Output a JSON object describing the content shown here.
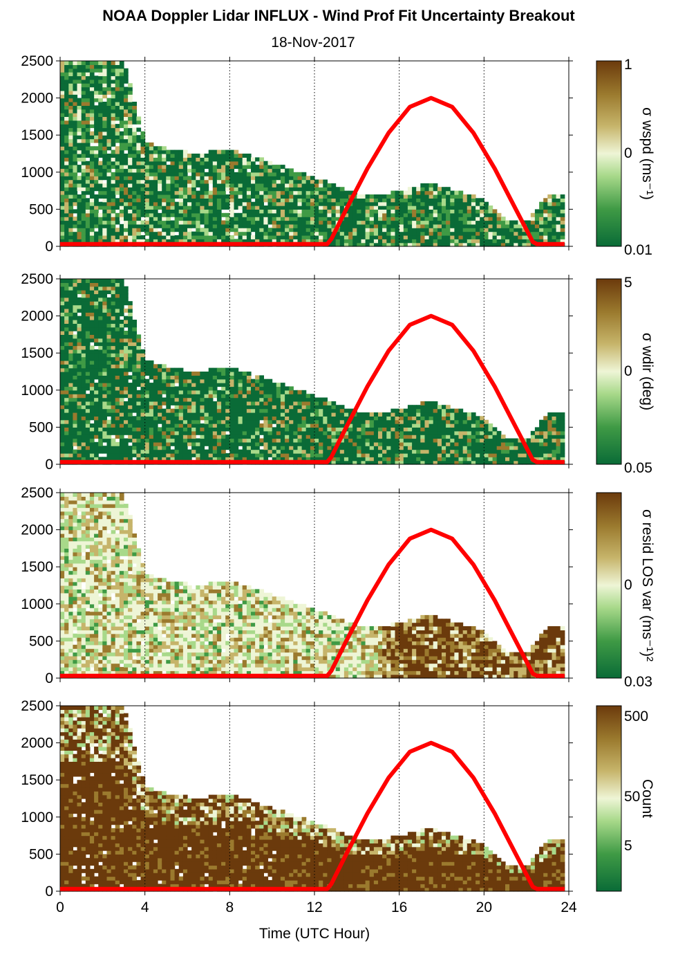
{
  "figure": {
    "title": "NOAA Doppler Lidar INFLUX - Wind Prof Fit Uncertainty Breakout",
    "date": "18-Nov-2017",
    "xlabel": "Time (UTC Hour)"
  },
  "colors": {
    "deep_green": "#0a6b37",
    "green": "#3f9a45",
    "light_green": "#a8d98a",
    "pale": "#eef5d6",
    "tan": "#c6b46a",
    "olive_brown": "#9b7a2e",
    "dark_brown": "#6b3a0c",
    "sun_curve": "#ff0000"
  },
  "chart_data": [
    {
      "type": "heatmap",
      "variable": "wspd",
      "colorbar": {
        "label": "σ wspd (ms⁻¹)",
        "ticks": [
          "1",
          "0",
          "0.01"
        ],
        "scale": "log",
        "range": [
          0.01,
          1
        ]
      },
      "x_ticks": [
        0,
        4,
        8,
        12,
        16,
        20,
        24
      ],
      "y_ticks": [
        0,
        500,
        1000,
        1500,
        2000,
        2500
      ],
      "xlim": [
        0,
        24
      ],
      "ylim": [
        0,
        2500
      ],
      "grid": "dotted vertical lines at 4-hour intervals"
    },
    {
      "type": "heatmap",
      "variable": "wdir",
      "colorbar": {
        "label": "σ wdir (deg)",
        "ticks": [
          "5",
          "0",
          "0.05"
        ],
        "scale": "log",
        "range": [
          0.05,
          5
        ]
      },
      "x_ticks": [
        0,
        4,
        8,
        12,
        16,
        20,
        24
      ],
      "y_ticks": [
        0,
        500,
        1000,
        1500,
        2000,
        2500
      ],
      "xlim": [
        0,
        24
      ],
      "ylim": [
        0,
        2500
      ],
      "grid": "dotted vertical lines at 4-hour intervals"
    },
    {
      "type": "heatmap",
      "variable": "resid LOS var",
      "colorbar": {
        "label": "σ resid LOS var (ms⁻¹)²",
        "ticks": [
          "0",
          "0.03"
        ],
        "scale": "log"
      },
      "x_ticks": [
        0,
        4,
        8,
        12,
        16,
        20,
        24
      ],
      "y_ticks": [
        0,
        500,
        1000,
        1500,
        2000,
        2500
      ],
      "xlim": [
        0,
        24
      ],
      "ylim": [
        0,
        2500
      ],
      "grid": "dotted vertical lines at 4-hour intervals"
    },
    {
      "type": "heatmap",
      "variable": "Count",
      "colorbar": {
        "label": "Count",
        "ticks": [
          "500",
          "50",
          "5"
        ],
        "scale": "log"
      },
      "x_ticks": [
        0,
        4,
        8,
        12,
        16,
        20,
        24
      ],
      "x_tick_labels": [
        "0",
        "4",
        "8",
        "12",
        "16",
        "20",
        "24"
      ],
      "y_ticks": [
        0,
        500,
        1000,
        1500,
        2000,
        2500
      ],
      "xlim": [
        0,
        24
      ],
      "ylim": [
        0,
        2500
      ],
      "grid": "dotted vertical lines at 4-hour intervals"
    }
  ],
  "sun_curve": {
    "color": "#ff0000",
    "x": [
      0,
      12.6,
      12.8,
      13.5,
      14.5,
      15.5,
      16.5,
      17.5,
      18.5,
      19.5,
      20.5,
      21.5,
      22.3,
      22.5,
      23.8
    ],
    "y": [
      30,
      30,
      100,
      500,
      1050,
      1530,
      1880,
      2000,
      1880,
      1530,
      1050,
      500,
      60,
      30,
      30
    ]
  },
  "boundary_layer": {
    "x": [
      0,
      1,
      2,
      3,
      4,
      5,
      6,
      7,
      8,
      9,
      10,
      11,
      12,
      12.5,
      13,
      13.5,
      14,
      15,
      16,
      17,
      17.5,
      18,
      19,
      19.5,
      20,
      20.5,
      21,
      21.5,
      22,
      22.5,
      23,
      23.7
    ],
    "top": [
      2500,
      2500,
      2500,
      2500,
      1400,
      1300,
      1250,
      1250,
      1300,
      1200,
      1100,
      1000,
      900,
      850,
      800,
      720,
      700,
      680,
      720,
      800,
      850,
      780,
      700,
      650,
      600,
      450,
      350,
      350,
      300,
      500,
      650,
      700
    ]
  }
}
